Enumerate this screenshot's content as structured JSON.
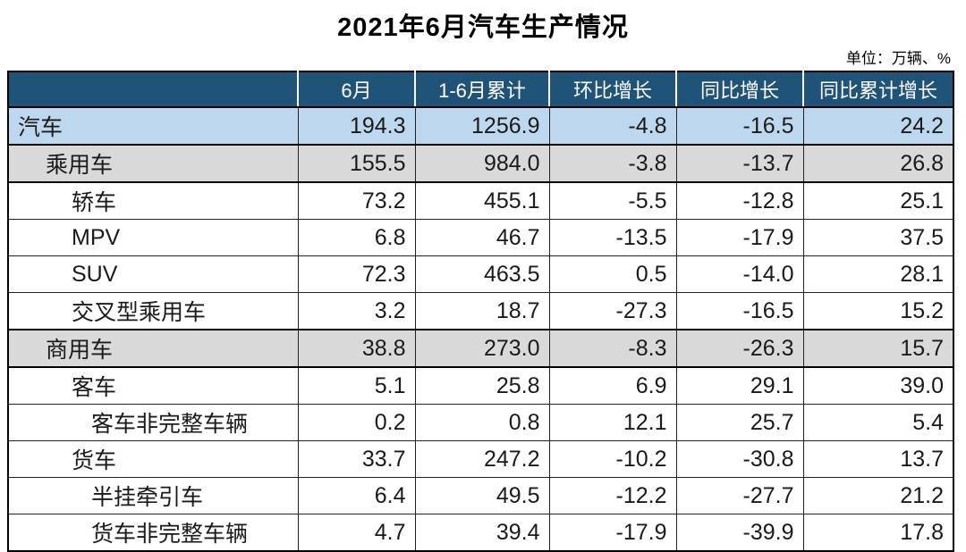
{
  "title": "2021年6月汽车生产情况",
  "unit_note": "单位：万辆、%",
  "colors": {
    "header_bg": "#1F5377",
    "header_text": "#FFFFFF",
    "total_row_bg": "#BDD7EE",
    "section_row_bg": "#D9D9D9",
    "border": "#000000"
  },
  "chart_data": {
    "type": "table",
    "title": "2021年6月汽车生产情况",
    "unit": "单位：万辆、%",
    "columns": [
      "",
      "6月",
      "1-6月累计",
      "环比增长",
      "同比增长",
      "同比累计增长"
    ],
    "rows": [
      {
        "label": "汽车",
        "indent": 0,
        "style": "total",
        "values": [
          "194.3",
          "1256.9",
          "-4.8",
          "-16.5",
          "24.2"
        ]
      },
      {
        "label": "乘用车",
        "indent": 1,
        "style": "section",
        "values": [
          "155.5",
          "984.0",
          "-3.8",
          "-13.7",
          "26.8"
        ]
      },
      {
        "label": "轿车",
        "indent": 2,
        "style": "plain",
        "values": [
          "73.2",
          "455.1",
          "-5.5",
          "-12.8",
          "25.1"
        ]
      },
      {
        "label": "MPV",
        "indent": 2,
        "style": "plain",
        "values": [
          "6.8",
          "46.7",
          "-13.5",
          "-17.9",
          "37.5"
        ]
      },
      {
        "label": "SUV",
        "indent": 2,
        "style": "plain",
        "values": [
          "72.3",
          "463.5",
          "0.5",
          "-14.0",
          "28.1"
        ]
      },
      {
        "label": "交叉型乘用车",
        "indent": 2,
        "style": "plain",
        "values": [
          "3.2",
          "18.7",
          "-27.3",
          "-16.5",
          "15.2"
        ]
      },
      {
        "label": "商用车",
        "indent": 1,
        "style": "section",
        "values": [
          "38.8",
          "273.0",
          "-8.3",
          "-26.3",
          "15.7"
        ]
      },
      {
        "label": "客车",
        "indent": 2,
        "style": "plain",
        "values": [
          "5.1",
          "25.8",
          "6.9",
          "29.1",
          "39.0"
        ]
      },
      {
        "label": "客车非完整车辆",
        "indent": 3,
        "style": "plain",
        "values": [
          "0.2",
          "0.8",
          "12.1",
          "25.7",
          "5.4"
        ]
      },
      {
        "label": "货车",
        "indent": 2,
        "style": "plain",
        "values": [
          "33.7",
          "247.2",
          "-10.2",
          "-30.8",
          "13.7"
        ]
      },
      {
        "label": "半挂牵引车",
        "indent": 3,
        "style": "plain",
        "values": [
          "6.4",
          "49.5",
          "-12.2",
          "-27.7",
          "21.2"
        ]
      },
      {
        "label": "货车非完整车辆",
        "indent": 3,
        "style": "plain",
        "values": [
          "4.7",
          "39.4",
          "-17.9",
          "-39.9",
          "17.8"
        ]
      }
    ]
  }
}
